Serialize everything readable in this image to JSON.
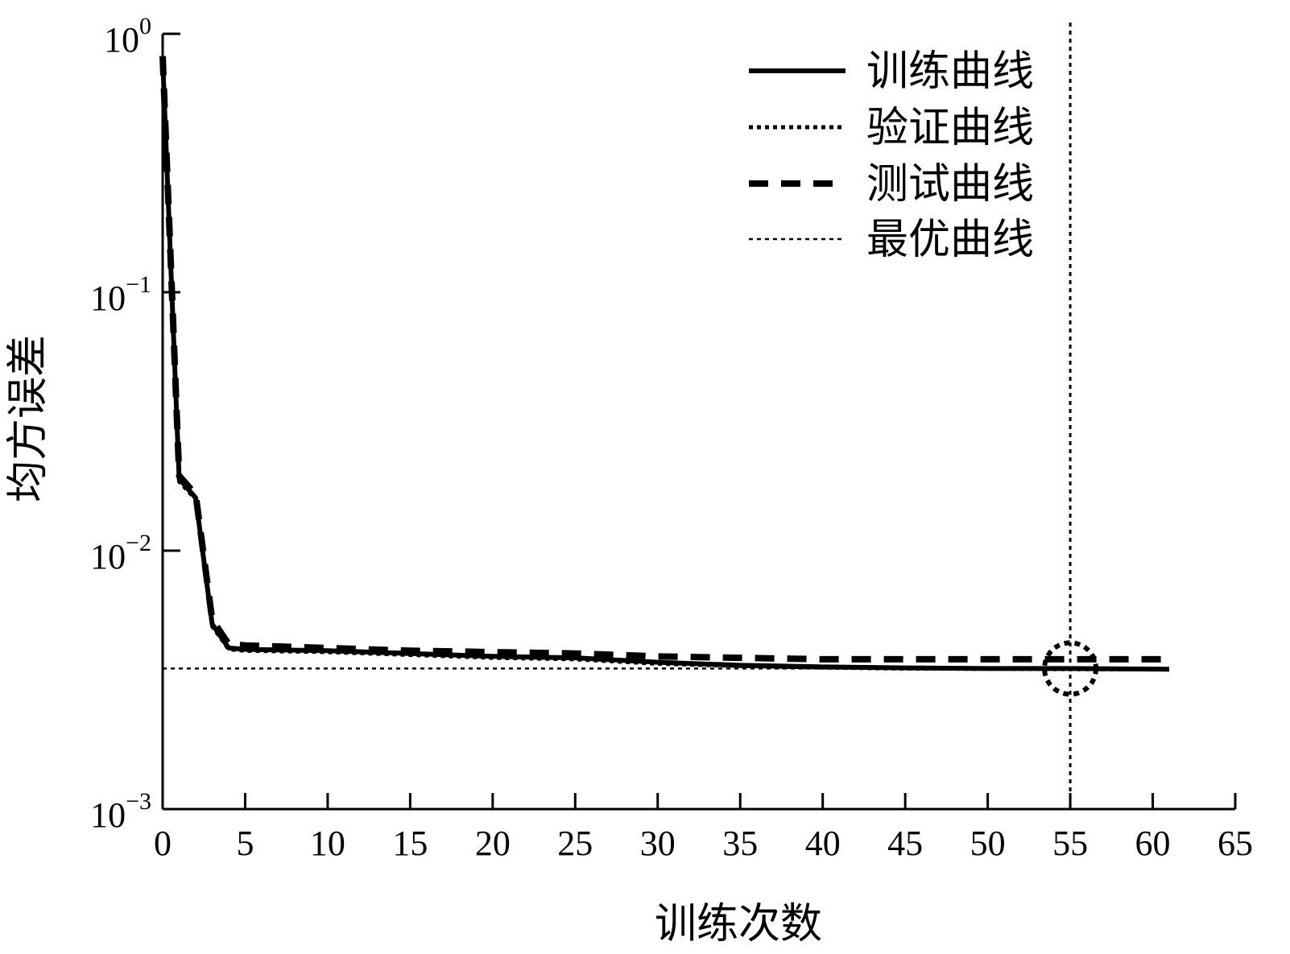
{
  "chart_data": {
    "type": "line",
    "xlabel": "训练次数",
    "ylabel": "均方误差",
    "xlim": [
      0,
      65
    ],
    "ylim": [
      0.001,
      1
    ],
    "yscale": "log",
    "xticks": [
      "0",
      "5",
      "10",
      "15",
      "20",
      "25",
      "30",
      "35",
      "40",
      "45",
      "50",
      "55",
      "60",
      "65"
    ],
    "xtick_values": [
      0,
      5,
      10,
      15,
      20,
      25,
      30,
      35,
      40,
      45,
      50,
      55,
      60,
      65
    ],
    "yticks": [
      {
        "base": "10",
        "exp": "0",
        "value": 1
      },
      {
        "base": "10",
        "exp": "−1",
        "value": 0.1
      },
      {
        "base": "10",
        "exp": "−2",
        "value": 0.01
      },
      {
        "base": "10",
        "exp": "−3",
        "value": 0.001
      }
    ],
    "grid": false,
    "legend_position": "top-right",
    "series": [
      {
        "name": "训练曲线",
        "style": "solid",
        "color": "#000000",
        "x": [
          0,
          1,
          2,
          3,
          4,
          5,
          10,
          15,
          20,
          25,
          30,
          35,
          40,
          45,
          50,
          55,
          61
        ],
        "y": [
          0.8,
          0.019,
          0.016,
          0.0052,
          0.0042,
          0.00415,
          0.0041,
          0.004,
          0.0039,
          0.00385,
          0.0037,
          0.0036,
          0.00355,
          0.00352,
          0.0035,
          0.0035,
          0.00348
        ]
      },
      {
        "name": "验证曲线",
        "style": "dotted",
        "color": "#000000",
        "x": [
          0,
          1,
          2,
          3,
          4,
          5,
          10,
          15,
          20,
          25,
          30,
          35,
          40,
          45,
          50,
          55,
          61
        ],
        "y": [
          0.78,
          0.0185,
          0.0158,
          0.0051,
          0.00415,
          0.0041,
          0.00405,
          0.00395,
          0.00385,
          0.0038,
          0.00365,
          0.00358,
          0.00353,
          0.0035,
          0.00349,
          0.00348,
          0.00347
        ]
      },
      {
        "name": "测试曲线",
        "style": "dashed",
        "color": "#000000",
        "x": [
          0,
          1,
          2,
          3,
          4,
          5,
          10,
          15,
          20,
          25,
          30,
          35,
          40,
          45,
          50,
          55,
          61
        ],
        "y": [
          0.82,
          0.0195,
          0.0165,
          0.0054,
          0.00435,
          0.0043,
          0.0042,
          0.0041,
          0.00405,
          0.004,
          0.0039,
          0.00385,
          0.0038,
          0.0038,
          0.0038,
          0.0038,
          0.0038
        ]
      },
      {
        "name": "最优曲线",
        "style": "fine-dotted",
        "color": "#000000",
        "x": [
          0,
          61
        ],
        "y": [
          0.0035,
          0.0035
        ]
      }
    ],
    "best_epoch": 55,
    "best_value": 0.0035
  }
}
